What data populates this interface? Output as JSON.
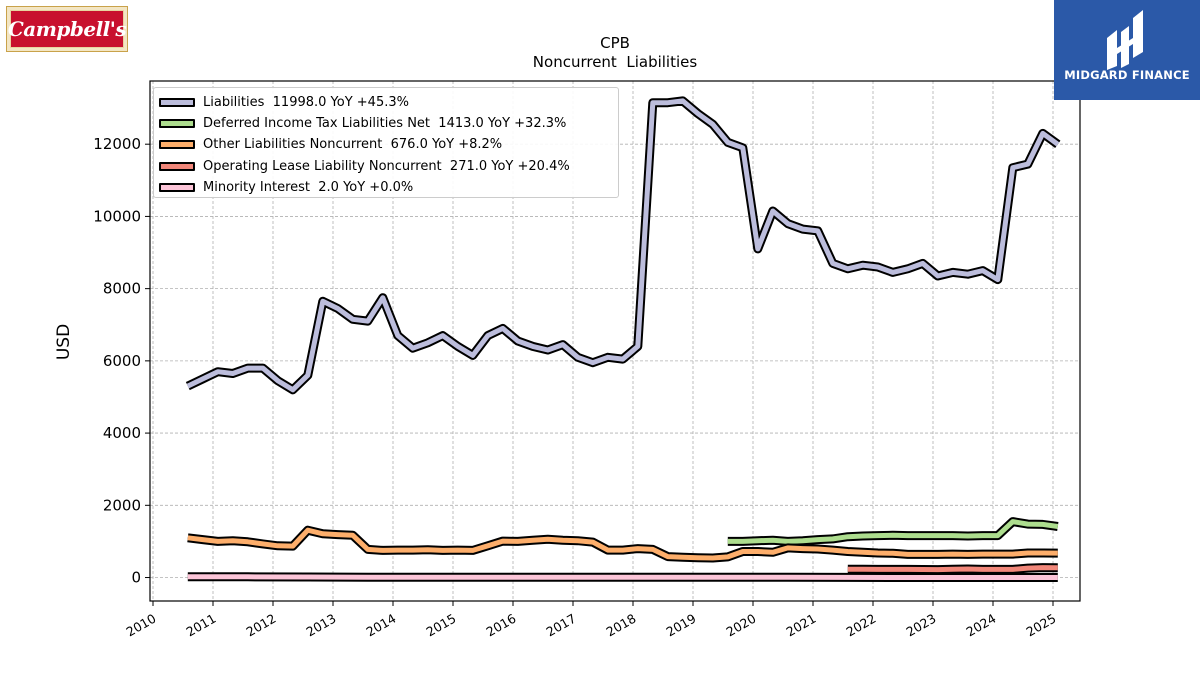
{
  "logos": {
    "left": {
      "text": "Campbell's"
    },
    "right": {
      "text": "MIDGARD FINANCE"
    }
  },
  "chart_data": {
    "type": "line",
    "title": "CPB",
    "subtitle": "Noncurrent  Liabilities",
    "ylabel": "USD",
    "xlabel": "",
    "xlim": [
      2009.95,
      2025.45
    ],
    "ylim": [
      -650,
      13750
    ],
    "yticks": [
      0,
      2000,
      4000,
      6000,
      8000,
      10000,
      12000
    ],
    "xticks": [
      "2010",
      "2011",
      "2012",
      "2013",
      "2014",
      "2015",
      "2016",
      "2017",
      "2018",
      "2019",
      "2020",
      "2021",
      "2022",
      "2023",
      "2024",
      "2025"
    ],
    "grid": true,
    "legend_position": "top-left",
    "stacked_display": true,
    "series": [
      {
        "name": "Liabilities",
        "legend_label": "Liabilities  11998.0 YoY +45.3%",
        "color": "#bcbddc",
        "x": [
          2010.58,
          2010.83,
          2011.08,
          2011.33,
          2011.58,
          2011.83,
          2012.08,
          2012.33,
          2012.58,
          2012.83,
          2013.08,
          2013.33,
          2013.58,
          2013.83,
          2014.08,
          2014.33,
          2014.58,
          2014.83,
          2015.08,
          2015.33,
          2015.58,
          2015.83,
          2016.08,
          2016.33,
          2016.58,
          2016.83,
          2017.08,
          2017.33,
          2017.58,
          2017.83,
          2018.08,
          2018.33,
          2018.58,
          2018.83,
          2019.08,
          2019.33,
          2019.58,
          2019.83,
          2020.08,
          2020.33,
          2020.58,
          2020.83,
          2021.08,
          2021.33,
          2021.58,
          2021.83,
          2022.08,
          2022.33,
          2022.58,
          2022.83,
          2023.08,
          2023.33,
          2023.58,
          2023.83,
          2024.08,
          2024.33,
          2024.58,
          2024.83,
          2025.08
        ],
        "values": [
          5300,
          5500,
          5700,
          5650,
          5800,
          5800,
          5450,
          5200,
          5600,
          7650,
          7450,
          7150,
          7100,
          7750,
          6700,
          6350,
          6500,
          6700,
          6400,
          6150,
          6700,
          6900,
          6550,
          6400,
          6300,
          6450,
          6100,
          5950,
          6100,
          6050,
          6400,
          13150,
          13150,
          13200,
          12850,
          12550,
          12050,
          11900,
          9100,
          10150,
          9800,
          9650,
          9600,
          8700,
          8550,
          8650,
          8600,
          8450,
          8550,
          8700,
          8350,
          8450,
          8400,
          8500,
          8250,
          11350,
          11450,
          12300,
          11998
        ]
      },
      {
        "name": "Deferred Income Tax Liabilities Net",
        "legend_label": "Deferred Income Tax Liabilities Net  1413.0 YoY +32.3%",
        "color": "#addd8e",
        "x": [
          2019.58,
          2019.83,
          2020.08,
          2020.33,
          2020.58,
          2020.83,
          2021.08,
          2021.33,
          2021.58,
          2021.83,
          2022.08,
          2022.33,
          2022.58,
          2022.83,
          2023.08,
          2023.33,
          2023.58,
          2023.83,
          2024.08,
          2024.33,
          2024.58,
          2024.83,
          2025.08
        ],
        "values": [
          1000,
          1000,
          1020,
          1030,
          1000,
          1020,
          1050,
          1070,
          1130,
          1150,
          1160,
          1170,
          1160,
          1160,
          1160,
          1160,
          1150,
          1160,
          1160,
          1550,
          1480,
          1470,
          1413
        ]
      },
      {
        "name": "Other Liabilities Noncurrent",
        "legend_label": "Other Liabilities Noncurrent  676.0 YoY +8.2%",
        "color": "#fdae6b",
        "x": [
          2010.58,
          2010.83,
          2011.08,
          2011.33,
          2011.58,
          2011.83,
          2012.08,
          2012.33,
          2012.58,
          2012.83,
          2013.08,
          2013.33,
          2013.58,
          2013.83,
          2014.08,
          2014.33,
          2014.58,
          2014.83,
          2015.08,
          2015.33,
          2015.58,
          2015.83,
          2016.08,
          2016.33,
          2016.58,
          2016.83,
          2017.08,
          2017.33,
          2017.58,
          2017.83,
          2018.08,
          2018.33,
          2018.58,
          2018.83,
          2019.08,
          2019.33,
          2019.58,
          2019.83,
          2020.08,
          2020.33,
          2020.58,
          2020.83,
          2021.08,
          2021.33,
          2021.58,
          2021.83,
          2022.08,
          2022.33,
          2022.58,
          2022.83,
          2023.08,
          2023.33,
          2023.58,
          2023.83,
          2024.08,
          2024.33,
          2024.58,
          2024.83,
          2025.08
        ],
        "values": [
          1100,
          1050,
          1000,
          1020,
          990,
          930,
          880,
          870,
          1310,
          1210,
          1190,
          1170,
          780,
          750,
          760,
          760,
          770,
          750,
          760,
          750,
          880,
          1010,
          1000,
          1030,
          1060,
          1030,
          1020,
          980,
          760,
          760,
          800,
          780,
          580,
          560,
          550,
          540,
          570,
          720,
          720,
          700,
          820,
          800,
          790,
          760,
          720,
          700,
          680,
          670,
          640,
          640,
          640,
          650,
          640,
          650,
          650,
          650,
          680,
          680,
          676
        ]
      },
      {
        "name": "Operating Lease Liability Noncurrent",
        "legend_label": "Operating Lease Liability Noncurrent  271.0 YoY +20.4%",
        "color": "#f1877a",
        "x": [
          2021.58,
          2021.83,
          2022.08,
          2022.33,
          2022.58,
          2022.83,
          2023.08,
          2023.33,
          2023.58,
          2023.83,
          2024.08,
          2024.33,
          2024.58,
          2024.83,
          2025.08
        ],
        "values": [
          230,
          228,
          226,
          225,
          224,
          222,
          220,
          230,
          235,
          225,
          225,
          225,
          260,
          275,
          271
        ]
      },
      {
        "name": "Minority Interest",
        "legend_label": "Minority Interest  2.0 YoY +0.0%",
        "color": "#fcc5d8",
        "x": [
          2010.58,
          2011.58,
          2012.58,
          2013.58,
          2014.58,
          2015.58,
          2016.58,
          2017.58,
          2018.58,
          2019.58,
          2020.58,
          2021.58,
          2022.58,
          2023.58,
          2024.58,
          2025.08
        ],
        "values": [
          20,
          20,
          15,
          10,
          5,
          5,
          5,
          5,
          5,
          5,
          5,
          3,
          2,
          2,
          2,
          2
        ]
      }
    ]
  }
}
